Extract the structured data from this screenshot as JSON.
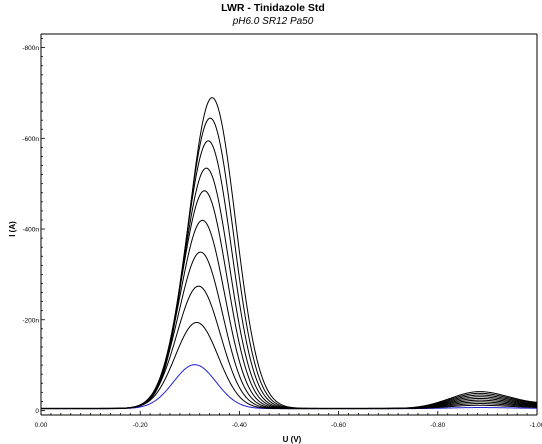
{
  "chart_data": {
    "type": "line",
    "title": "LWR - Tinidazole Std",
    "subtitle": "pH6.0 SR12 Pa50",
    "xlabel": "U (V)",
    "ylabel": "I (A)",
    "x_reversed": true,
    "y_reversed": true,
    "xlim": [
      0.0,
      -1.0
    ],
    "ylim": [
      10,
      -830
    ],
    "x_ticks": [
      0.0,
      -0.2,
      -0.4,
      -0.6,
      -0.8,
      -1.0
    ],
    "x_tick_labels": [
      "0.00",
      "-0.20",
      "-0.40",
      "-0.60",
      "-0.80",
      "-1.00"
    ],
    "y_ticks": [
      0,
      -200,
      -400,
      -600,
      -800
    ],
    "y_tick_labels": [
      "0",
      "-200n",
      "-400n",
      "-600n",
      "-800n"
    ],
    "grid": false,
    "legend": "none",
    "colors": {
      "standard_series": "#000000",
      "lowest_series": "#1f1fd6"
    },
    "peak1_potential_first": -0.31,
    "peak1_potential_last": -0.345,
    "peak2_potential": -0.88,
    "series": [
      {
        "color": "#1f1fd6",
        "peak1": -97,
        "peak2": -2
      },
      {
        "color": "#000000",
        "peak1": -190,
        "peak2": -6
      },
      {
        "color": "#000000",
        "peak1": -270,
        "peak2": -9
      },
      {
        "color": "#000000",
        "peak1": -345,
        "peak2": -12
      },
      {
        "color": "#000000",
        "peak1": -415,
        "peak2": -15
      },
      {
        "color": "#000000",
        "peak1": -480,
        "peak2": -18
      },
      {
        "color": "#000000",
        "peak1": -530,
        "peak2": -21
      },
      {
        "color": "#000000",
        "peak1": -590,
        "peak2": -24
      },
      {
        "color": "#000000",
        "peak1": -640,
        "peak2": -27
      },
      {
        "color": "#000000",
        "peak1": -685,
        "peak2": -30
      }
    ]
  }
}
